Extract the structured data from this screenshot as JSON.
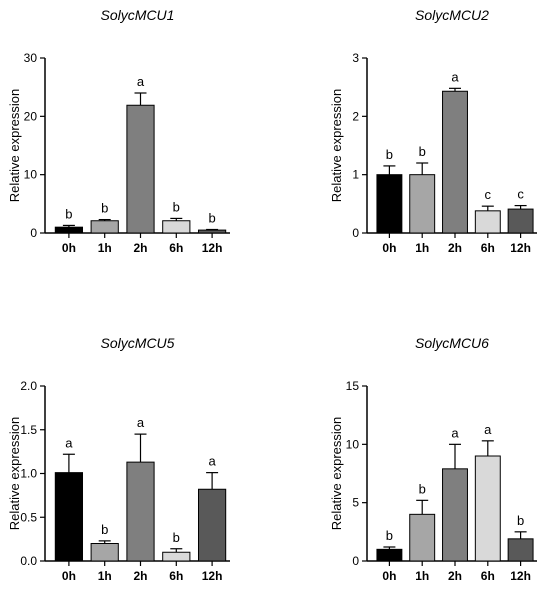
{
  "chart_data": [
    {
      "type": "bar",
      "title": "SolycMCU1",
      "ylabel": "Relative expression",
      "xlabel": "",
      "categories": [
        "0h",
        "1h",
        "2h",
        "6h",
        "12h"
      ],
      "values": [
        1.0,
        2.1,
        21.9,
        2.1,
        0.5
      ],
      "errors": [
        0.3,
        0.2,
        2.1,
        0.4,
        0.1
      ],
      "letters": [
        "b",
        "b",
        "a",
        "b",
        "b"
      ],
      "colors": [
        "#000000",
        "#a6a6a6",
        "#7f7f7f",
        "#d9d9d9",
        "#595959"
      ],
      "ylim": [
        0,
        30
      ],
      "yticks": [
        0,
        10,
        20,
        30
      ],
      "ytick_labels": [
        "0",
        "10",
        "20",
        "30"
      ],
      "grid": false,
      "error_bars": true
    },
    {
      "type": "bar",
      "title": "SolycMCU2",
      "ylabel": "Relative expression",
      "xlabel": "",
      "categories": [
        "0h",
        "1h",
        "2h",
        "6h",
        "12h"
      ],
      "values": [
        1.0,
        1.0,
        2.43,
        0.38,
        0.41
      ],
      "errors": [
        0.15,
        0.2,
        0.05,
        0.08,
        0.06
      ],
      "letters": [
        "b",
        "b",
        "a",
        "c",
        "c"
      ],
      "colors": [
        "#000000",
        "#a6a6a6",
        "#7f7f7f",
        "#d9d9d9",
        "#595959"
      ],
      "ylim": [
        0,
        3
      ],
      "yticks": [
        0,
        1,
        2,
        3
      ],
      "ytick_labels": [
        "0",
        "1",
        "2",
        "3"
      ],
      "grid": false,
      "error_bars": true
    },
    {
      "type": "bar",
      "title": "SolycMCU5",
      "ylabel": "Relative expression",
      "xlabel": "",
      "categories": [
        "0h",
        "1h",
        "2h",
        "6h",
        "12h"
      ],
      "values": [
        1.01,
        0.2,
        1.13,
        0.1,
        0.82
      ],
      "errors": [
        0.21,
        0.03,
        0.32,
        0.04,
        0.19
      ],
      "letters": [
        "a",
        "b",
        "a",
        "b",
        "a"
      ],
      "colors": [
        "#000000",
        "#a6a6a6",
        "#7f7f7f",
        "#d9d9d9",
        "#595959"
      ],
      "ylim": [
        0,
        2.0
      ],
      "yticks": [
        0,
        0.5,
        1.0,
        1.5,
        2.0
      ],
      "ytick_labels": [
        "0.0",
        "0.5",
        "1.0",
        "1.5",
        "2.0"
      ],
      "grid": false,
      "error_bars": true
    },
    {
      "type": "bar",
      "title": "SolycMCU6",
      "ylabel": "Relative expression",
      "xlabel": "",
      "categories": [
        "0h",
        "1h",
        "2h",
        "6h",
        "12h"
      ],
      "values": [
        1.0,
        4.0,
        7.9,
        9.0,
        1.9
      ],
      "errors": [
        0.2,
        1.2,
        2.1,
        1.3,
        0.6
      ],
      "letters": [
        "b",
        "b",
        "a",
        "a",
        "b"
      ],
      "colors": [
        "#000000",
        "#a6a6a6",
        "#7f7f7f",
        "#d9d9d9",
        "#595959"
      ],
      "ylim": [
        0,
        15
      ],
      "yticks": [
        0,
        5,
        10,
        15
      ],
      "ytick_labels": [
        "0",
        "5",
        "10",
        "15"
      ],
      "grid": false,
      "error_bars": true
    }
  ]
}
